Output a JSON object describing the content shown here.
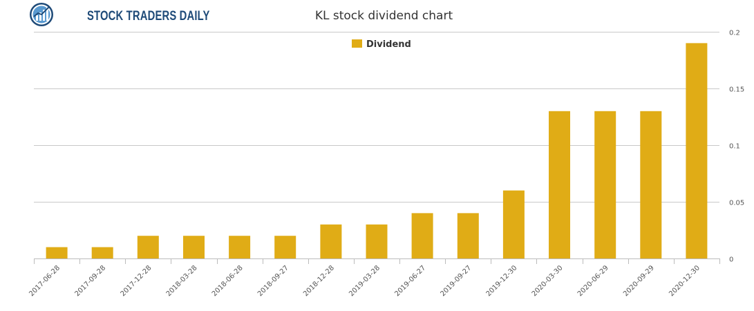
{
  "header": {
    "brand": "STOCK TRADERS DAILY",
    "logo_icon": "chart-globe-icon"
  },
  "chart_data": {
    "type": "bar",
    "title": "KL stock dividend chart",
    "xlabel": "",
    "ylabel": "",
    "categories": [
      "2017-06-28",
      "2017-09-28",
      "2017-12-28",
      "2018-03-28",
      "2018-06-28",
      "2018-09-27",
      "2018-12-28",
      "2019-03-28",
      "2019-06-27",
      "2019-09-27",
      "2019-12-30",
      "2020-03-30",
      "2020-06-29",
      "2020-09-29",
      "2020-12-30"
    ],
    "series": [
      {
        "name": "Dividend",
        "color": "#e0ac16",
        "values": [
          0.01,
          0.01,
          0.02,
          0.02,
          0.02,
          0.02,
          0.03,
          0.03,
          0.04,
          0.04,
          0.06,
          0.13,
          0.13,
          0.13,
          0.19
        ]
      }
    ],
    "ylim": [
      0,
      0.2
    ],
    "yticks": [
      0,
      0.05,
      0.1,
      0.15,
      0.2
    ],
    "ytick_labels": [
      "0",
      "0.05",
      "0.1",
      "0.15",
      "0.2"
    ],
    "y_axis_side": "right",
    "grid": true,
    "legend_position": "top-center"
  }
}
